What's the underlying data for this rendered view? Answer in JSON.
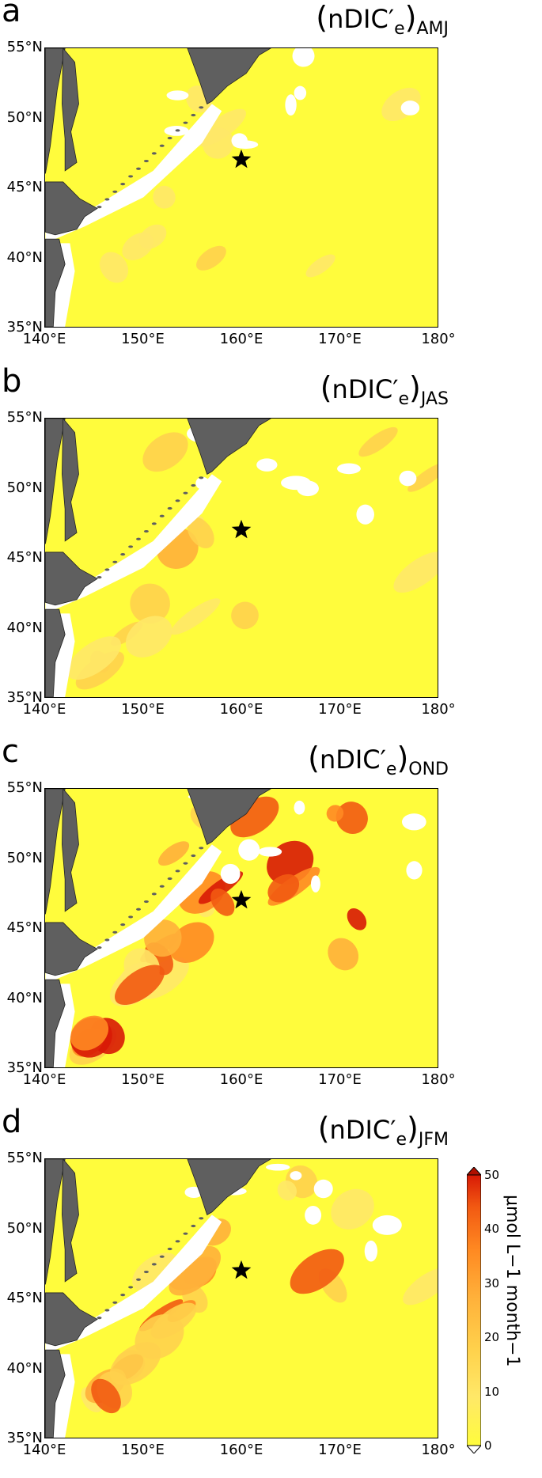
{
  "panels": [
    {
      "letter": "a",
      "title_base": "nDIC′",
      "title_sub_e": "e",
      "title_season": "AMJ",
      "intensity": 0.15
    },
    {
      "letter": "b",
      "title_base": "nDIC′",
      "title_sub_e": "e",
      "title_season": "JAS",
      "intensity": 0.35
    },
    {
      "letter": "c",
      "title_base": "nDIC′",
      "title_sub_e": "e",
      "title_season": "OND",
      "intensity": 0.85
    },
    {
      "letter": "d",
      "title_base": "nDIC′",
      "title_sub_e": "e",
      "title_season": "JFM",
      "intensity": 0.7
    }
  ],
  "lat_labels": [
    "55°N",
    "50°N",
    "45°N",
    "40°N",
    "35°N"
  ],
  "lon_labels": [
    "140°E",
    "150°E",
    "160°E",
    "170°E",
    "180°"
  ],
  "marker": {
    "name": "station-star",
    "lon": 160,
    "lat": 47
  },
  "colorbar": {
    "ticks": [
      "50",
      "40",
      "30",
      "20",
      "10",
      "0"
    ],
    "label": "μmol L−1 month−1",
    "colors": [
      "#fffc3c",
      "#ffe868",
      "#ffd24c",
      "#ffb03a",
      "#ff8a22",
      "#f25a12",
      "#d81a06"
    ]
  },
  "colors": {
    "land": "#5f5f5f",
    "ocean_base": "#fffc3c",
    "nodata": "#ffffff"
  }
}
